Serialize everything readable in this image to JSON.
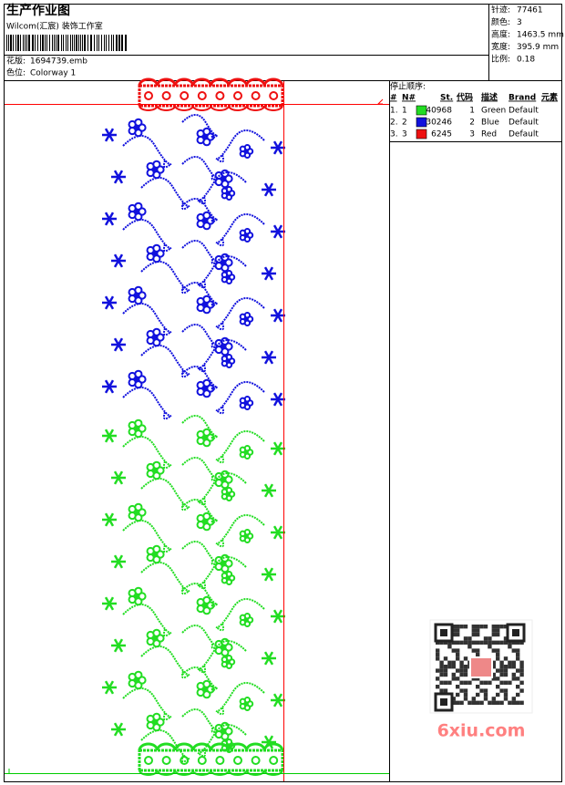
{
  "header": {
    "title": "生产作业图",
    "studio": "Wilcom(汇宸) 装饰工作室",
    "design_label": "花版:",
    "design_file": "1694739.emb",
    "colorway_label": "色位:",
    "colorway": "Colorway 1"
  },
  "stats": [
    {
      "label": "针迹:",
      "value": "77461"
    },
    {
      "label": "颜色:",
      "value": "3"
    },
    {
      "label": "高度:",
      "value": "1463.5 mm"
    },
    {
      "label": "宽度:",
      "value": "395.9 mm"
    },
    {
      "label": "比例:",
      "value": "0.18"
    }
  ],
  "table": {
    "title": "停止顺序:",
    "columns": [
      "#",
      "N#",
      "St.",
      "代码",
      "描述",
      "Brand",
      "元素"
    ],
    "rows": [
      {
        "stop": "1.",
        "needle": "1",
        "color": "#22dd22",
        "stitches": 40968,
        "code": "1",
        "desc": "Green",
        "brand": "Default"
      },
      {
        "stop": "2.",
        "needle": "2",
        "color": "#1111dd",
        "stitches": 30246,
        "code": "2",
        "desc": "Blue",
        "brand": "Default"
      },
      {
        "stop": "3.",
        "needle": "3",
        "color": "#ee1111",
        "stitches": 6245,
        "code": "3",
        "desc": "Red",
        "brand": "Default"
      }
    ]
  },
  "watermark": "6xiu.com"
}
